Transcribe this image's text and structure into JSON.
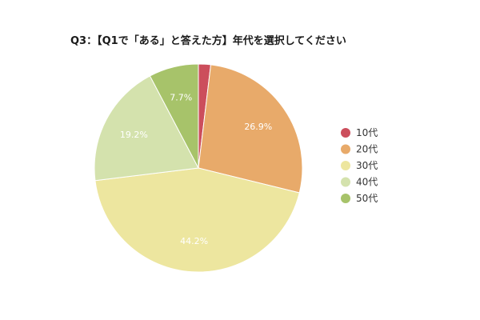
{
  "chart_data": {
    "type": "pie",
    "title": "Q3：【Q1で「ある」と答えた方】年代を選択してください",
    "legend_position": "right",
    "slices": [
      {
        "label": "10代",
        "value": 1.9,
        "color": "#cc4e5c",
        "data_label": ""
      },
      {
        "label": "20代",
        "value": 26.9,
        "color": "#e8aa6a",
        "data_label": "26.9%"
      },
      {
        "label": "30代",
        "value": 44.2,
        "color": "#ede69f",
        "data_label": "44.2%"
      },
      {
        "label": "40代",
        "value": 19.2,
        "color": "#d4e2ad",
        "data_label": "19.2%"
      },
      {
        "label": "50代",
        "value": 7.7,
        "color": "#a7c36a",
        "data_label": "7.7%"
      }
    ]
  }
}
